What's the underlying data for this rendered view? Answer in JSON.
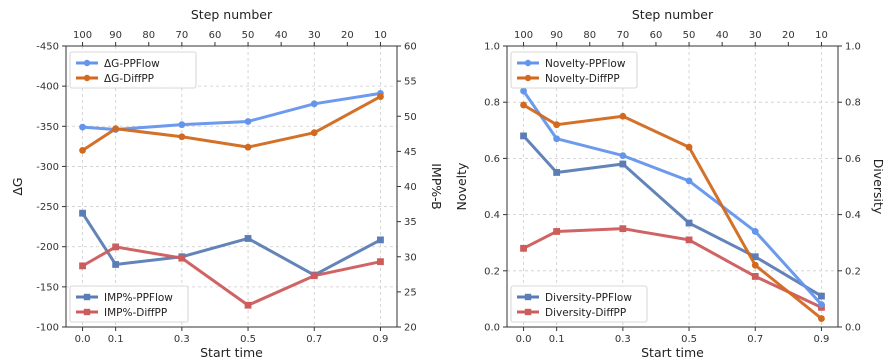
{
  "chart_data": [
    {
      "type": "line",
      "xlabel": "Start time",
      "top_xlabel": "Step number",
      "x": [
        0.0,
        0.1,
        0.3,
        0.5,
        0.7,
        0.9
      ],
      "x_ticks": [
        "0.0",
        "0.1",
        "0.3",
        "0.5",
        "0.7",
        "0.9"
      ],
      "xlim": [
        -0.05,
        0.95
      ],
      "top_x_ticks": [
        "100",
        "90",
        "80",
        "70",
        "60",
        "50",
        "40",
        "30",
        "20",
        "10"
      ],
      "left_axis": {
        "label": "ΔG",
        "lim": [
          -450,
          -100
        ],
        "inverted": true,
        "ticks": [
          "-450",
          "-400",
          "-350",
          "-300",
          "-250",
          "-200",
          "-150",
          "-100"
        ],
        "series": [
          {
            "name": "ΔG-PPFlow",
            "color": "#6495ED",
            "marker": "circle",
            "values": [
              -349,
              -346,
              -352,
              -356,
              -378,
              -391
            ]
          },
          {
            "name": "ΔG-DiffPP",
            "color": "#D2691E",
            "marker": "circle",
            "values": [
              -320,
              -347,
              -337,
              -324,
              -342,
              -387
            ]
          }
        ]
      },
      "right_axis": {
        "label": "IMP%-B",
        "lim": [
          20,
          60
        ],
        "ticks": [
          "20",
          "25",
          "30",
          "35",
          "40",
          "45",
          "50",
          "55",
          "60"
        ],
        "series": [
          {
            "name": "IMP%-PPFlow",
            "color": "#5B7DB5",
            "marker": "square",
            "values": [
              36.2,
              28.9,
              30.0,
              32.6,
              27.4,
              32.4
            ]
          },
          {
            "name": "IMP%-DiffPP",
            "color": "#CD5C5C",
            "marker": "square",
            "values": [
              28.7,
              31.4,
              29.8,
              23.1,
              27.3,
              29.3
            ]
          }
        ]
      },
      "legends": {
        "top": "upper-left",
        "bottom": "lower-left"
      },
      "grid": true
    },
    {
      "type": "line",
      "xlabel": "Start time",
      "top_xlabel": "Step number",
      "x": [
        0.0,
        0.1,
        0.3,
        0.5,
        0.7,
        0.9
      ],
      "x_ticks": [
        "0.0",
        "0.1",
        "0.3",
        "0.5",
        "0.7",
        "0.9"
      ],
      "xlim": [
        -0.05,
        0.95
      ],
      "top_x_ticks": [
        "100",
        "90",
        "80",
        "70",
        "60",
        "50",
        "40",
        "30",
        "20",
        "10"
      ],
      "left_axis": {
        "label": "Novelty",
        "lim": [
          0.0,
          1.0
        ],
        "ticks": [
          "0.0",
          "0.2",
          "0.4",
          "0.6",
          "0.8",
          "1.0"
        ],
        "series": [
          {
            "name": "Novelty-PPFlow",
            "color": "#6495ED",
            "marker": "circle",
            "values": [
              0.84,
              0.67,
              0.61,
              0.52,
              0.34,
              0.08
            ]
          },
          {
            "name": "Novelty-DiffPP",
            "color": "#D2691E",
            "marker": "circle",
            "values": [
              0.79,
              0.72,
              0.75,
              0.64,
              0.22,
              0.03
            ]
          }
        ]
      },
      "right_axis": {
        "label": "Diversity",
        "lim": [
          0.0,
          1.0
        ],
        "ticks": [
          "0.0",
          "0.2",
          "0.4",
          "0.6",
          "0.8",
          "1.0"
        ],
        "series": [
          {
            "name": "Diversity-PPFlow",
            "color": "#5B7DB5",
            "marker": "square",
            "values": [
              0.68,
              0.55,
              0.58,
              0.37,
              0.25,
              0.11
            ]
          },
          {
            "name": "Diversity-DiffPP",
            "color": "#CD5C5C",
            "marker": "square",
            "values": [
              0.28,
              0.34,
              0.35,
              0.31,
              0.18,
              0.07
            ]
          }
        ]
      },
      "legends": {
        "top": "upper-left",
        "bottom": "lower-left"
      },
      "grid": true
    }
  ]
}
